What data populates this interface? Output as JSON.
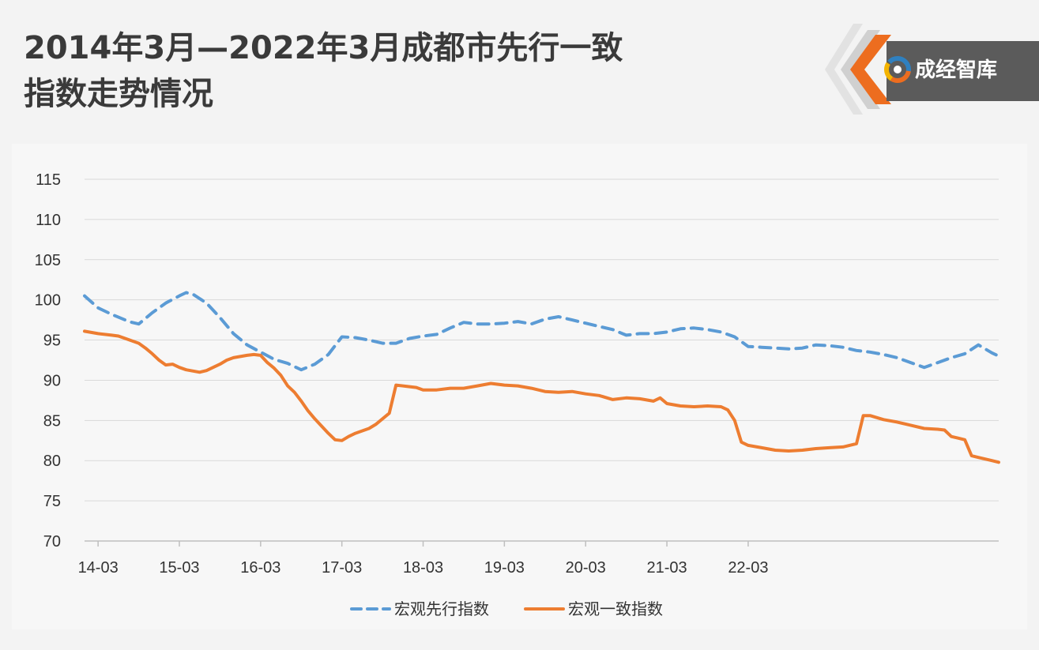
{
  "header": {
    "title_line1": "2014年3月—2022年3月成都市先行一致",
    "title_line2": "指数走势情况"
  },
  "logo": {
    "text": "成经智库",
    "icon": "swirl-logo-icon"
  },
  "colors": {
    "leading": "#5b9bd5",
    "coincident": "#ed7d31",
    "grid": "#d9d9d9",
    "axis": "#bfbfbf",
    "text": "#333333",
    "logo_orange": "#ed6d1f",
    "logo_gray": "#5b5b5b"
  },
  "chart_data": {
    "type": "line",
    "title": "",
    "xlabel": "",
    "ylabel": "",
    "ylim": [
      70,
      115
    ],
    "yticks": [
      70,
      75,
      80,
      85,
      90,
      95,
      100,
      105,
      110,
      115
    ],
    "x_tick_labels": [
      "14-03",
      "15-03",
      "16-03",
      "17-03",
      "18-03",
      "19-03",
      "20-03",
      "21-03",
      "22-03"
    ],
    "x_unit": "months since 14-03",
    "grid": true,
    "legend_position": "bottom",
    "series": [
      {
        "name": "宏观先行指数",
        "style": "dashed",
        "color": "#5b9bd5",
        "points": [
          [
            0,
            100.5
          ],
          [
            2,
            99.0
          ],
          [
            4,
            98.2
          ],
          [
            6,
            97.5
          ],
          [
            7,
            97.2
          ],
          [
            8,
            97.0
          ],
          [
            10,
            98.4
          ],
          [
            12,
            99.6
          ],
          [
            14,
            100.5
          ],
          [
            15,
            100.9
          ],
          [
            16,
            100.7
          ],
          [
            18,
            99.6
          ],
          [
            20,
            97.8
          ],
          [
            22,
            95.8
          ],
          [
            24,
            94.4
          ],
          [
            26,
            93.5
          ],
          [
            28,
            92.6
          ],
          [
            30,
            92.1
          ],
          [
            32,
            91.3
          ],
          [
            34,
            92.0
          ],
          [
            36,
            93.2
          ],
          [
            38,
            95.4
          ],
          [
            40,
            95.3
          ],
          [
            42,
            95.0
          ],
          [
            44,
            94.6
          ],
          [
            46,
            94.6
          ],
          [
            48,
            95.2
          ],
          [
            50,
            95.5
          ],
          [
            52,
            95.7
          ],
          [
            54,
            96.5
          ],
          [
            56,
            97.2
          ],
          [
            58,
            97.0
          ],
          [
            60,
            97.0
          ],
          [
            62,
            97.1
          ],
          [
            64,
            97.3
          ],
          [
            66,
            97.0
          ],
          [
            68,
            97.6
          ],
          [
            70,
            97.9
          ],
          [
            72,
            97.5
          ],
          [
            74,
            97.1
          ],
          [
            76,
            96.7
          ],
          [
            78,
            96.3
          ],
          [
            80,
            95.6
          ],
          [
            82,
            95.8
          ],
          [
            84,
            95.8
          ],
          [
            86,
            96.0
          ],
          [
            88,
            96.4
          ],
          [
            90,
            96.5
          ],
          [
            92,
            96.3
          ],
          [
            94,
            96.0
          ],
          [
            96,
            95.4
          ],
          [
            98,
            94.2
          ],
          [
            100,
            94.1
          ],
          [
            102,
            94.0
          ],
          [
            104,
            93.9
          ],
          [
            106,
            94.0
          ],
          [
            108,
            94.4
          ],
          [
            110,
            94.3
          ],
          [
            112,
            94.1
          ],
          [
            114,
            93.7
          ],
          [
            116,
            93.5
          ],
          [
            118,
            93.2
          ],
          [
            120,
            92.8
          ],
          [
            122,
            92.2
          ],
          [
            124,
            91.6
          ],
          [
            126,
            92.2
          ],
          [
            128,
            92.8
          ],
          [
            130,
            93.3
          ],
          [
            132,
            94.4
          ],
          [
            134,
            93.4
          ],
          [
            135,
            93.0
          ]
        ]
      },
      {
        "name": "宏观一致指数",
        "style": "solid",
        "color": "#ed7d31",
        "points": [
          [
            0,
            96.1
          ],
          [
            2,
            95.8
          ],
          [
            4,
            95.6
          ],
          [
            5,
            95.5
          ],
          [
            6,
            95.2
          ],
          [
            8,
            94.6
          ],
          [
            9,
            94.0
          ],
          [
            10,
            93.3
          ],
          [
            11,
            92.5
          ],
          [
            12,
            91.9
          ],
          [
            13,
            92.0
          ],
          [
            14,
            91.6
          ],
          [
            15,
            91.3
          ],
          [
            17,
            91.0
          ],
          [
            18,
            91.2
          ],
          [
            20,
            92.0
          ],
          [
            21,
            92.5
          ],
          [
            22,
            92.8
          ],
          [
            24,
            93.1
          ],
          [
            25,
            93.2
          ],
          [
            26,
            93.1
          ],
          [
            27,
            92.2
          ],
          [
            28,
            91.5
          ],
          [
            29,
            90.6
          ],
          [
            30,
            89.3
          ],
          [
            31,
            88.5
          ],
          [
            32,
            87.4
          ],
          [
            33,
            86.2
          ],
          [
            34,
            85.2
          ],
          [
            35,
            84.3
          ],
          [
            36,
            83.4
          ],
          [
            37,
            82.6
          ],
          [
            38,
            82.5
          ],
          [
            39,
            83.0
          ],
          [
            40,
            83.4
          ],
          [
            42,
            84.0
          ],
          [
            43,
            84.5
          ],
          [
            44,
            85.2
          ],
          [
            45,
            85.9
          ],
          [
            46,
            89.4
          ],
          [
            48,
            89.2
          ],
          [
            49,
            89.1
          ],
          [
            50,
            88.8
          ],
          [
            52,
            88.8
          ],
          [
            54,
            89.0
          ],
          [
            56,
            89.0
          ],
          [
            58,
            89.3
          ],
          [
            60,
            89.6
          ],
          [
            62,
            89.4
          ],
          [
            64,
            89.3
          ],
          [
            66,
            89.0
          ],
          [
            68,
            88.6
          ],
          [
            70,
            88.5
          ],
          [
            72,
            88.6
          ],
          [
            74,
            88.3
          ],
          [
            76,
            88.1
          ],
          [
            78,
            87.6
          ],
          [
            80,
            87.8
          ],
          [
            82,
            87.7
          ],
          [
            84,
            87.4
          ],
          [
            85,
            87.8
          ],
          [
            86,
            87.1
          ],
          [
            88,
            86.8
          ],
          [
            90,
            86.7
          ],
          [
            92,
            86.8
          ],
          [
            94,
            86.7
          ],
          [
            95,
            86.3
          ],
          [
            96,
            85.0
          ],
          [
            97,
            82.3
          ],
          [
            98,
            81.9
          ],
          [
            100,
            81.6
          ],
          [
            102,
            81.3
          ],
          [
            104,
            81.2
          ],
          [
            106,
            81.3
          ],
          [
            108,
            81.5
          ],
          [
            110,
            81.6
          ],
          [
            112,
            81.7
          ],
          [
            114,
            82.1
          ],
          [
            115,
            85.6
          ],
          [
            116,
            85.6
          ],
          [
            118,
            85.1
          ],
          [
            120,
            84.8
          ],
          [
            122,
            84.4
          ],
          [
            124,
            84.0
          ],
          [
            126,
            83.9
          ],
          [
            127,
            83.8
          ],
          [
            128,
            83.0
          ],
          [
            129,
            82.8
          ],
          [
            130,
            82.6
          ],
          [
            131,
            80.6
          ],
          [
            132,
            80.4
          ],
          [
            134,
            80.0
          ],
          [
            135,
            79.8
          ]
        ]
      }
    ]
  }
}
